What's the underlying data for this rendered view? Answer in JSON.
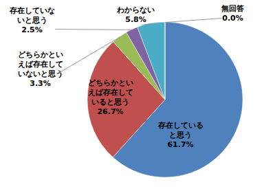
{
  "chart_data": {
    "type": "pie",
    "categories": [
      "存在していると思う",
      "どちらかといえば存在していると思う",
      "どちらかといえば存在していないと思う",
      "存在していないと思う",
      "わからない",
      "無回答"
    ],
    "values": [
      61.7,
      26.7,
      3.3,
      2.5,
      5.8,
      0.0
    ],
    "value_labels": [
      "61.7%",
      "26.7%",
      "3.3%",
      "2.5%",
      "5.8%",
      "0.0%"
    ],
    "colors": [
      "#4f81bd",
      "#c0504d",
      "#9bbb59",
      "#8064a2",
      "#4bacc6",
      "#f79646"
    ],
    "data_labels": true
  }
}
